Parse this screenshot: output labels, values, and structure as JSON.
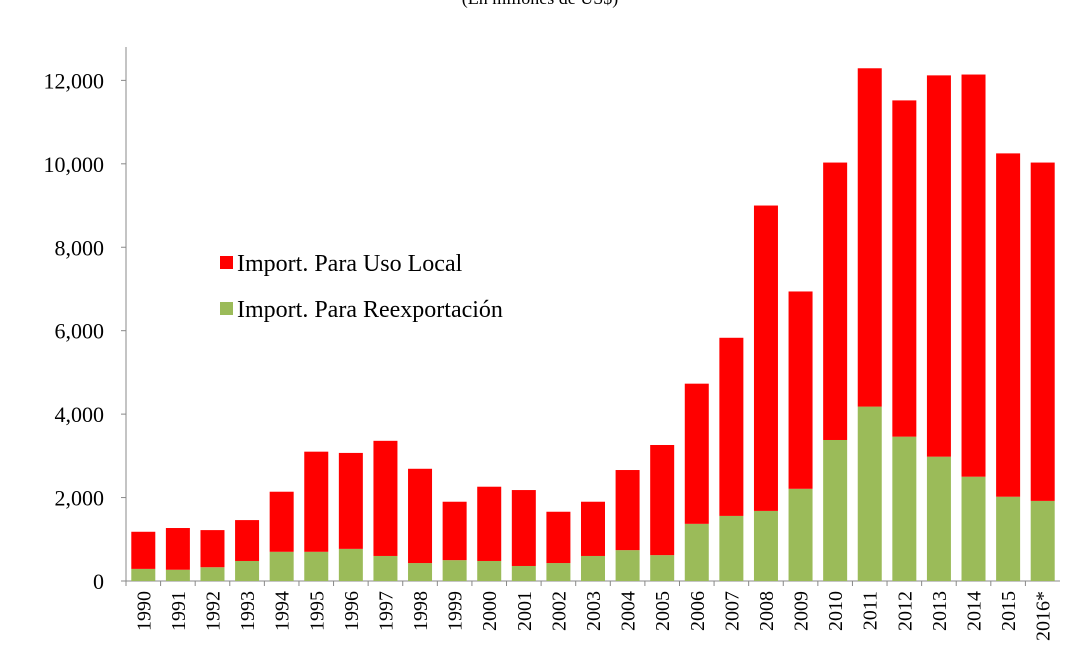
{
  "chart_data": {
    "type": "stacked_bar",
    "subtitle": "(En millones de US$)",
    "categories": [
      "1990",
      "1991",
      "1992",
      "1993",
      "1994",
      "1995",
      "1996",
      "1997",
      "1998",
      "1999",
      "2000",
      "2001",
      "2002",
      "2003",
      "2004",
      "2005",
      "2006",
      "2007",
      "2008",
      "2009",
      "2010",
      "2011",
      "2012",
      "2013",
      "2014",
      "2015",
      "2016*"
    ],
    "series": [
      {
        "name": "Import. Para Reexportación",
        "color": "#9bbb59",
        "values": [
          290,
          270,
          330,
          480,
          700,
          700,
          770,
          600,
          430,
          500,
          480,
          360,
          430,
          600,
          740,
          620,
          1370,
          1560,
          1680,
          2210,
          3380,
          4180,
          3460,
          2980,
          2500,
          2020,
          1920
        ]
      },
      {
        "name": "Import. Para Uso Local",
        "color": "#ff0000",
        "values": [
          890,
          1000,
          890,
          980,
          1440,
          2400,
          2300,
          2760,
          2260,
          1400,
          1780,
          1820,
          1230,
          1300,
          1920,
          2640,
          3360,
          4270,
          7320,
          4730,
          6650,
          8110,
          8060,
          9140,
          9640,
          8230,
          8110
        ]
      }
    ],
    "ylim": [
      0,
      12800
    ],
    "yticks": [
      0,
      {
        "value": 2000,
        "label": "2,000"
      },
      {
        "value": 4000,
        "label": "4,000"
      },
      {
        "value": 6000,
        "label": "6,000"
      },
      {
        "value": 8000,
        "label": "8,000"
      },
      {
        "value": 10000,
        "label": "10,000"
      },
      {
        "value": 12000,
        "label": "12,000"
      }
    ],
    "legend": "upper left"
  }
}
